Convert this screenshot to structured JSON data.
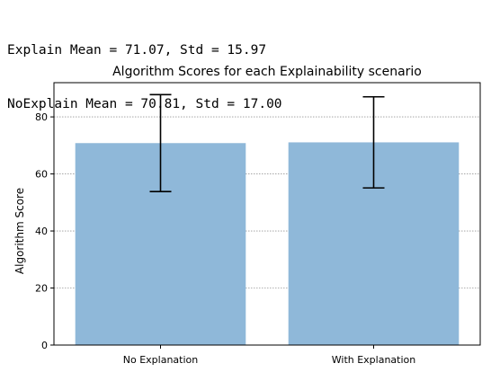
{
  "console_output": {
    "line1": "Explain Mean = 71.07, Std = 15.97",
    "line2": "NoExplain Mean = 70.81, Std = 17.00"
  },
  "chart_data": {
    "type": "bar",
    "title": "Algorithm Scores for each Explainability scenario",
    "xlabel": "",
    "ylabel": "Algorithm Score",
    "categories": [
      "No Explanation",
      "With Explanation"
    ],
    "values": [
      70.81,
      71.07
    ],
    "errors": [
      17.0,
      15.97
    ],
    "ylim": [
      0,
      92
    ],
    "yticks": [
      0,
      20,
      40,
      60,
      80
    ],
    "grid": "horizontal dashed",
    "bar_color": "#8fb8d9",
    "error_color": "#000000"
  }
}
